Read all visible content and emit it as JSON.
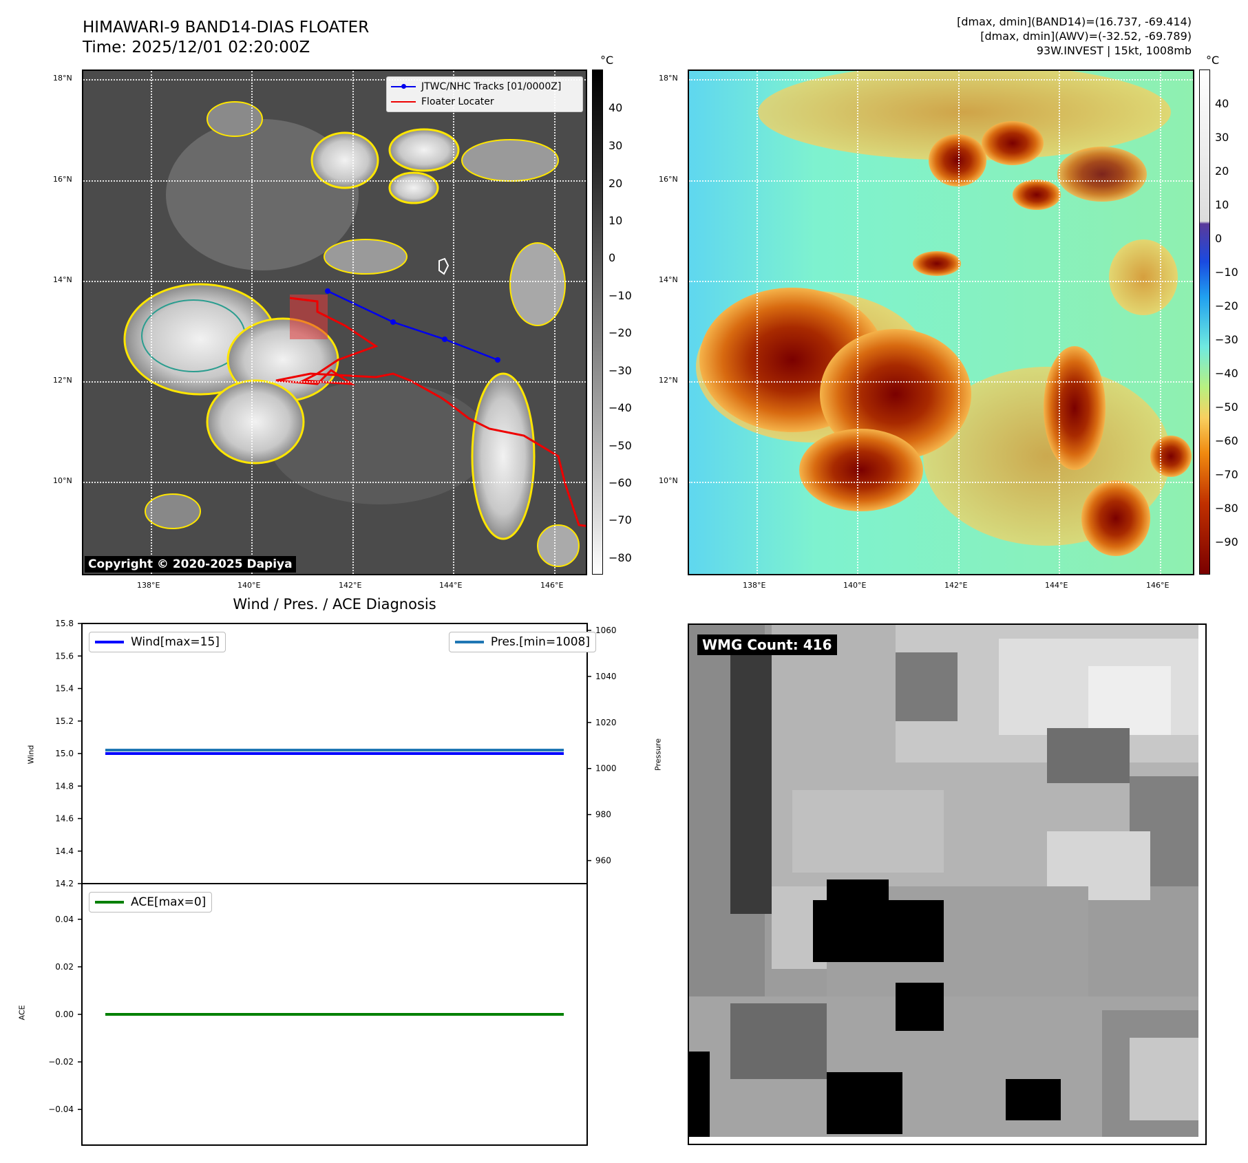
{
  "header": {
    "title_line1": "HIMAWARI-9 BAND14-DIAS FLOATER",
    "title_line2": "Time: 2025/12/01 02:20:00Z",
    "info_line1": "[dmax, dmin](BAND14)=(16.737, -69.414)",
    "info_line2": "[dmax, dmin](AWV)=(-32.52, -69.789)",
    "info_line3": "93W.INVEST | 15kt, 1008mb"
  },
  "map_axes": {
    "lat_ticks": [
      "18°N",
      "16°N",
      "14°N",
      "12°N",
      "10°N"
    ],
    "lon_ticks": [
      "138°E",
      "140°E",
      "142°E",
      "144°E",
      "146°E"
    ]
  },
  "ir_panel": {
    "colorbar_unit": "°C",
    "colorbar_ticks": [
      "40",
      "30",
      "20",
      "10",
      "0",
      "−10",
      "−20",
      "−30",
      "−40",
      "−50",
      "−60",
      "−70",
      "−80"
    ],
    "legend_track": "JTWC/NHC Tracks [01/0000Z]",
    "legend_locater": "Floater Locater",
    "copyright": "Copyright © 2020-2025 Dapiya",
    "track_color": "#0000ee",
    "locater_color": "#ee0000"
  },
  "awv_panel": {
    "colorbar_unit": "°C",
    "colorbar_ticks": [
      "40",
      "30",
      "20",
      "10",
      "0",
      "−10",
      "−20",
      "−30",
      "−40",
      "−50",
      "−60",
      "−70",
      "−80",
      "−90"
    ]
  },
  "diagnosis_title": "Wind / Pres. / ACE Diagnosis",
  "wmg_label": "WMG Count: 416",
  "chart_data": [
    {
      "type": "line",
      "title": "Wind / Pres. / ACE Diagnosis",
      "ylabel": "Wind",
      "y2label": "Pressure",
      "ylim": [
        14.2,
        15.8
      ],
      "y2lim": [
        950,
        1063
      ],
      "yticks": [
        "15.8",
        "15.6",
        "15.4",
        "15.2",
        "15.0",
        "14.8",
        "14.6",
        "14.4",
        "14.2"
      ],
      "y2ticks": [
        "1060",
        "1040",
        "1020",
        "1000",
        "980",
        "960"
      ],
      "series": [
        {
          "name": "Wind[max=15]",
          "values": [
            15,
            15
          ],
          "color": "#0000ff"
        },
        {
          "name": "Pres.[min=1008]",
          "values": [
            1008,
            1008
          ],
          "color": "#1f77b4"
        }
      ]
    },
    {
      "type": "line",
      "ylabel": "ACE",
      "ylim": [
        -0.055,
        0.055
      ],
      "yticks": [
        "0.04",
        "0.02",
        "0.00",
        "−0.02",
        "−0.04"
      ],
      "series": [
        {
          "name": "ACE[max=0]",
          "values": [
            0,
            0
          ],
          "color": "#008000"
        }
      ]
    }
  ]
}
